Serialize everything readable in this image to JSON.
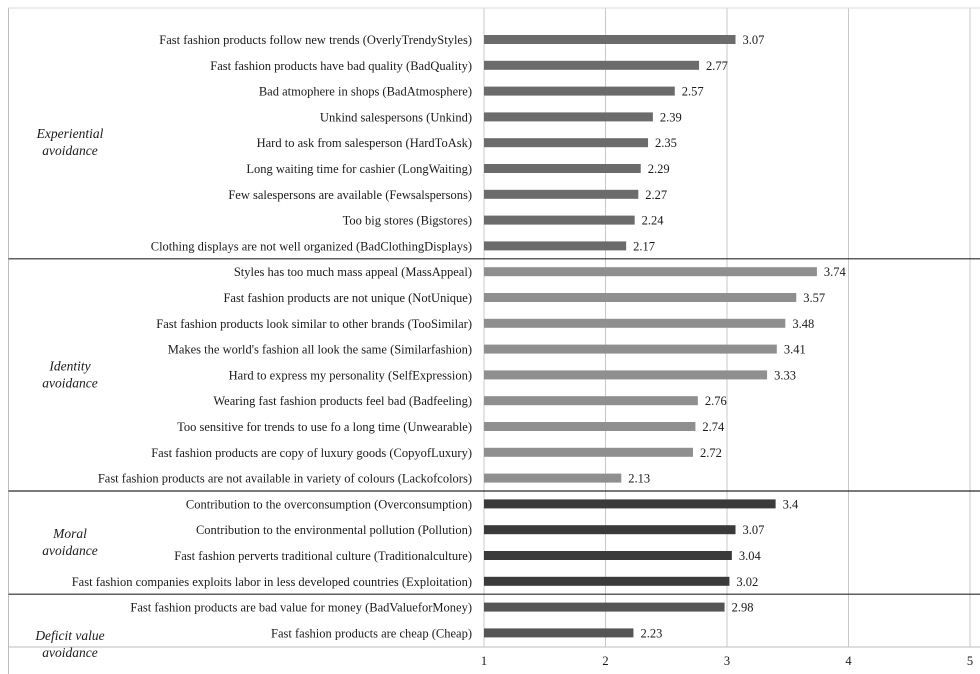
{
  "chart_data": {
    "type": "bar",
    "orientation": "horizontal",
    "xlim": [
      1,
      5
    ],
    "x_ticks": [
      "1",
      "2",
      "3",
      "4",
      "5"
    ],
    "grid": "vertical",
    "groups": [
      {
        "label_lines": [
          "Experiential",
          "avoidance"
        ],
        "color": "#6b6b6b",
        "items": [
          {
            "label": "Fast fashion products follow new trends (OverlyTrendyStyles)",
            "value": 3.07,
            "value_label": "3.07"
          },
          {
            "label": "Fast fashion products have bad quality (BadQuality)",
            "value": 2.77,
            "value_label": "2.77"
          },
          {
            "label": "Bad atmophere in shops (BadAtmosphere)",
            "value": 2.57,
            "value_label": "2.57"
          },
          {
            "label": "Unkind salespersons (Unkind)",
            "value": 2.39,
            "value_label": "2.39"
          },
          {
            "label": "Hard to ask from salesperson (HardToAsk)",
            "value": 2.35,
            "value_label": "2.35"
          },
          {
            "label": "Long waiting time for cashier (LongWaiting)",
            "value": 2.29,
            "value_label": "2.29"
          },
          {
            "label": "Few salespersons are available (Fewsalspersons)",
            "value": 2.27,
            "value_label": "2.27"
          },
          {
            "label": "Too big stores (Bigstores)",
            "value": 2.24,
            "value_label": "2.24"
          },
          {
            "label": "Clothing displays are not well organized (BadClothingDisplays)",
            "value": 2.17,
            "value_label": "2.17"
          }
        ]
      },
      {
        "label_lines": [
          "Identity",
          "avoidance"
        ],
        "color": "#8f8f8f",
        "items": [
          {
            "label": "Styles has too much mass appeal (MassAppeal)",
            "value": 3.74,
            "value_label": "3.74"
          },
          {
            "label": "Fast fashion products are not unique (NotUnique)",
            "value": 3.57,
            "value_label": "3.57"
          },
          {
            "label": "Fast fashion products look similar to other brands (TooSimilar)",
            "value": 3.48,
            "value_label": "3.48"
          },
          {
            "label": "Makes the world's fashion all look the same (Similarfashion)",
            "value": 3.41,
            "value_label": "3.41"
          },
          {
            "label": "Hard to express my personality (SelfExpression)",
            "value": 3.33,
            "value_label": "3.33"
          },
          {
            "label": "Wearing fast fashion products feel bad (Badfeeling)",
            "value": 2.76,
            "value_label": "2.76"
          },
          {
            "label": "Too sensitive for trends to use fo a long time (Unwearable)",
            "value": 2.74,
            "value_label": "2.74"
          },
          {
            "label": "Fast fashion products are copy of luxury goods (CopyofLuxury)",
            "value": 2.72,
            "value_label": "2.72"
          },
          {
            "label": "Fast fashion products are not available in variety of colours (Lackofcolors)",
            "value": 2.13,
            "value_label": "2.13"
          }
        ]
      },
      {
        "label_lines": [
          "Moral",
          "avoidance"
        ],
        "color": "#3a3a3a",
        "items": [
          {
            "label": "Contribution to the overconsumption (Overconsumption)",
            "value": 3.4,
            "value_label": "3.4"
          },
          {
            "label": "Contribution to the environmental pollution (Pollution)",
            "value": 3.07,
            "value_label": "3.07"
          },
          {
            "label": "Fast fashion perverts traditional culture (Traditionalculture)",
            "value": 3.04,
            "value_label": "3.04"
          },
          {
            "label": "Fast fashion companies exploits labor in less developed countries (Exploitation)",
            "value": 3.02,
            "value_label": "3.02"
          }
        ]
      },
      {
        "label_lines": [
          "Deficit value",
          "avoidance"
        ],
        "color": "#555555",
        "items": [
          {
            "label": "Fast fashion products are bad value for money (BadValueforMoney)",
            "value": 2.98,
            "value_label": "2.98"
          },
          {
            "label": "Fast fashion products are cheap (Cheap)",
            "value": 2.23,
            "value_label": "2.23"
          }
        ]
      }
    ]
  }
}
